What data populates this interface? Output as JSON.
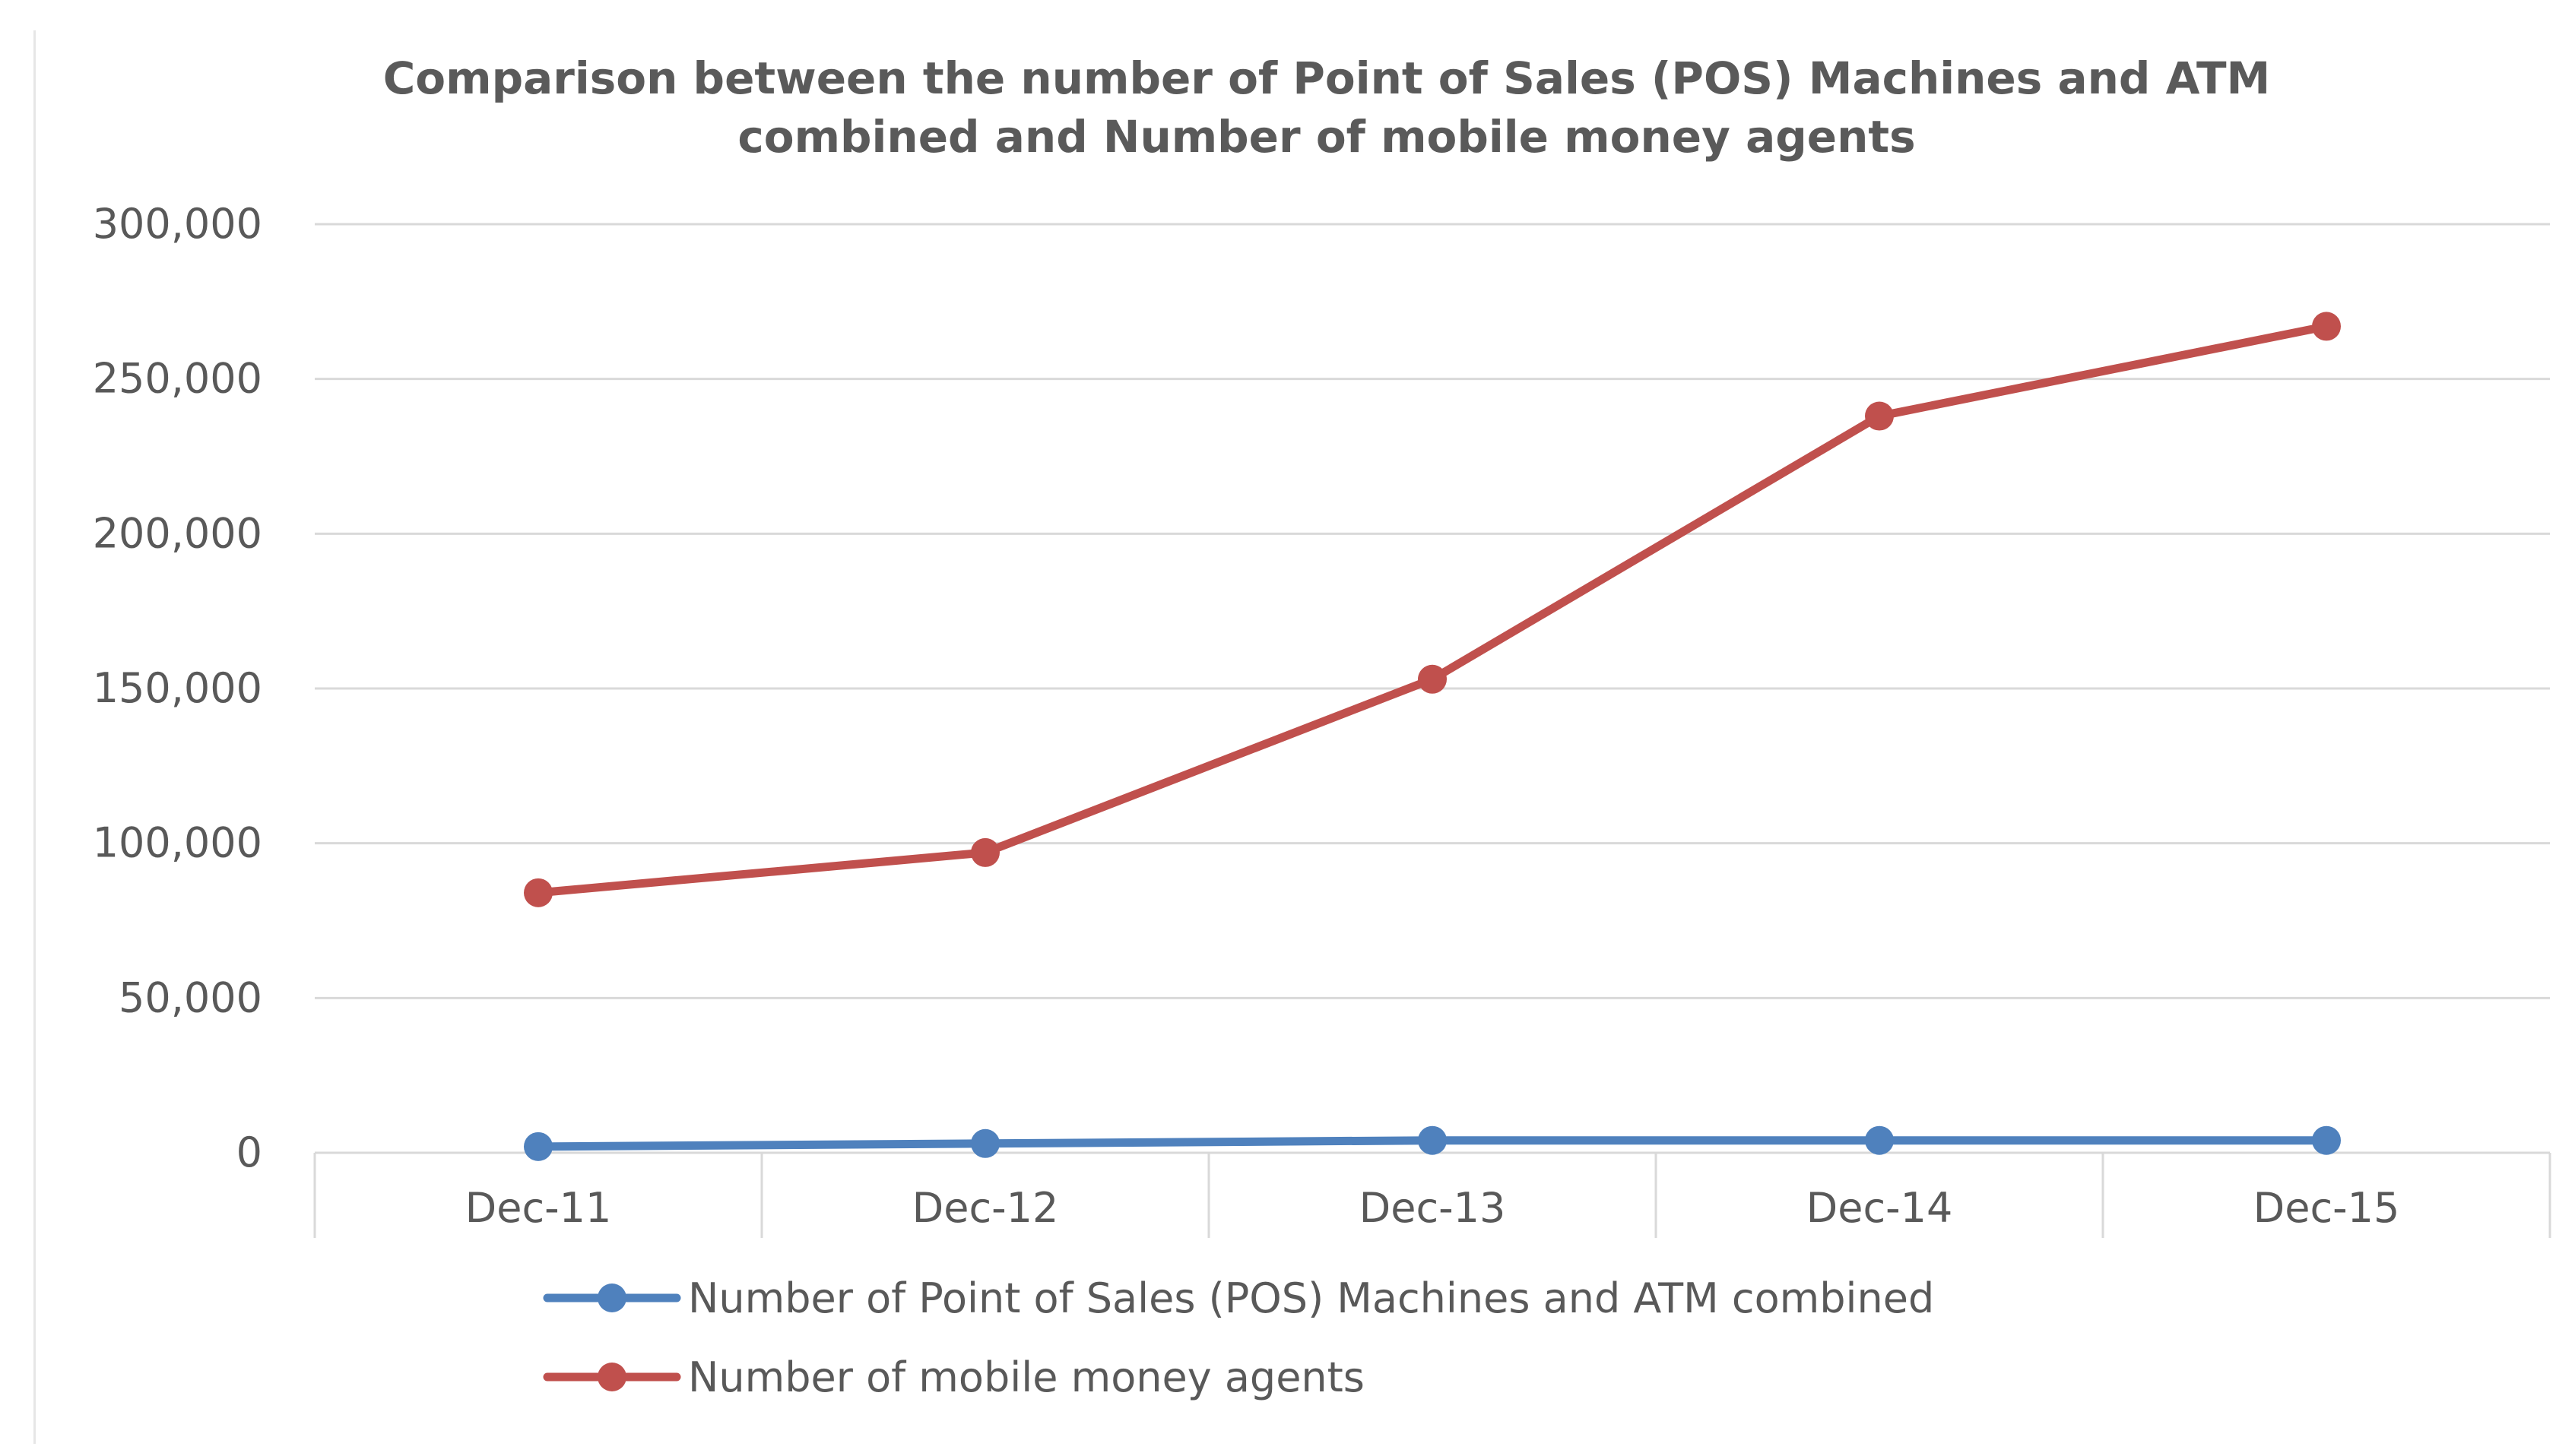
{
  "chart_data": {
    "type": "line",
    "title_lines": [
      "Comparison between the number of Point of Sales (POS) Machines and ATM",
      "combined and Number of mobile money agents"
    ],
    "categories": [
      "Dec-11",
      "Dec-12",
      "Dec-13",
      "Dec-14",
      "Dec-15"
    ],
    "y_ticks": [
      "0",
      "50,000",
      "100,000",
      "150,000",
      "200,000",
      "250,000",
      "300,000"
    ],
    "ylim": [
      0,
      300000
    ],
    "grid": true,
    "legend_position": "bottom",
    "series": [
      {
        "name": "Number of Point of Sales (POS) Machines and ATM combined",
        "color": "#4f81bd",
        "values": [
          2000,
          3000,
          4000,
          4000,
          4000
        ]
      },
      {
        "name": "Number of mobile money agents",
        "color": "#c0504d",
        "values": [
          84000,
          97000,
          153000,
          238000,
          267000
        ]
      }
    ]
  }
}
